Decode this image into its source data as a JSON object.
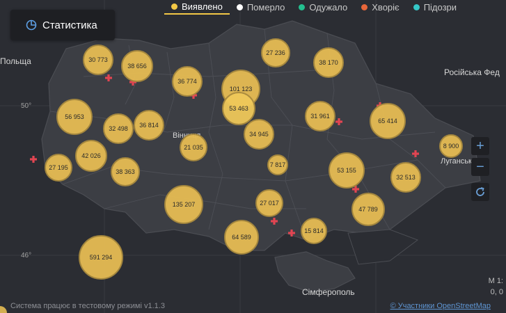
{
  "tabs": [
    {
      "label": "Виявлено",
      "color": "#f3c846",
      "active": true
    },
    {
      "label": "Померло",
      "color": "#ffffff",
      "active": false
    },
    {
      "label": "Одужало",
      "color": "#23c08f",
      "active": false
    },
    {
      "label": "Хворіє",
      "color": "#e8663a",
      "active": false
    },
    {
      "label": "Підозри",
      "color": "#35c7c7",
      "active": false
    }
  ],
  "stats_button": {
    "label": "Статистика",
    "icon": "pie-chart-icon"
  },
  "zoom": {
    "in_label": "+",
    "out_label": "−",
    "reset_icon": "refresh-icon"
  },
  "map_labels": {
    "poland": "Польща",
    "russia": "Російська Фед",
    "vinnytsia": "Вінниця",
    "luhansk": "Луганськ",
    "simferopol": "Сімферополь",
    "lat50": "50°",
    "lat46": "46°"
  },
  "scale_label": "М 1:",
  "coords_label": "0, 0",
  "footer": {
    "status": "Система працює в тестовому режимі v1.1.3",
    "attribution": "© Участники OpenStreetMap"
  },
  "bubbles": [
    "30 773",
    "38 656",
    "27 236",
    "38 170",
    "36 774",
    "101 123",
    "53 463",
    "56 953",
    "32 498",
    "36 814",
    "31 961",
    "65 414",
    "34 945",
    "21 035",
    "42 026",
    "27 195",
    "38 363",
    "8 900",
    "7 817",
    "53 155",
    "32 513",
    "135 207",
    "27 017",
    "47 789",
    "64 589",
    "15 814",
    "591 294"
  ],
  "colors": {
    "accent": "#f3c846",
    "hospital": "#e14552",
    "background": "#2b2d33",
    "land": "#3c3e44"
  }
}
